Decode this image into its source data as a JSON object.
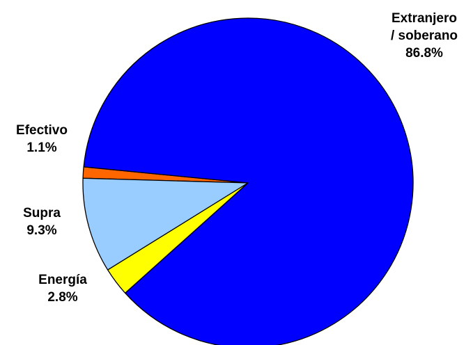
{
  "chart_data": {
    "type": "pie",
    "title": "",
    "slices": [
      {
        "label": "Extranjero / soberano",
        "label_lines": [
          "Extranjero",
          "/ soberano"
        ],
        "value": 86.8,
        "value_label": "86.8%",
        "color": "#0000FF"
      },
      {
        "label": "Efectivo",
        "label_lines": [
          "Efectivo"
        ],
        "value": 1.1,
        "value_label": "1.1%",
        "color": "#FF6600"
      },
      {
        "label": "Supra",
        "label_lines": [
          "Supra"
        ],
        "value": 9.3,
        "value_label": "9.3%",
        "color": "#99CCFF"
      },
      {
        "label": "Energía",
        "label_lines": [
          "Energía"
        ],
        "value": 2.8,
        "value_label": "2.8%",
        "color": "#FFFF00"
      }
    ],
    "legend": "none",
    "labels_outside": true,
    "outline_color": "#000000"
  }
}
